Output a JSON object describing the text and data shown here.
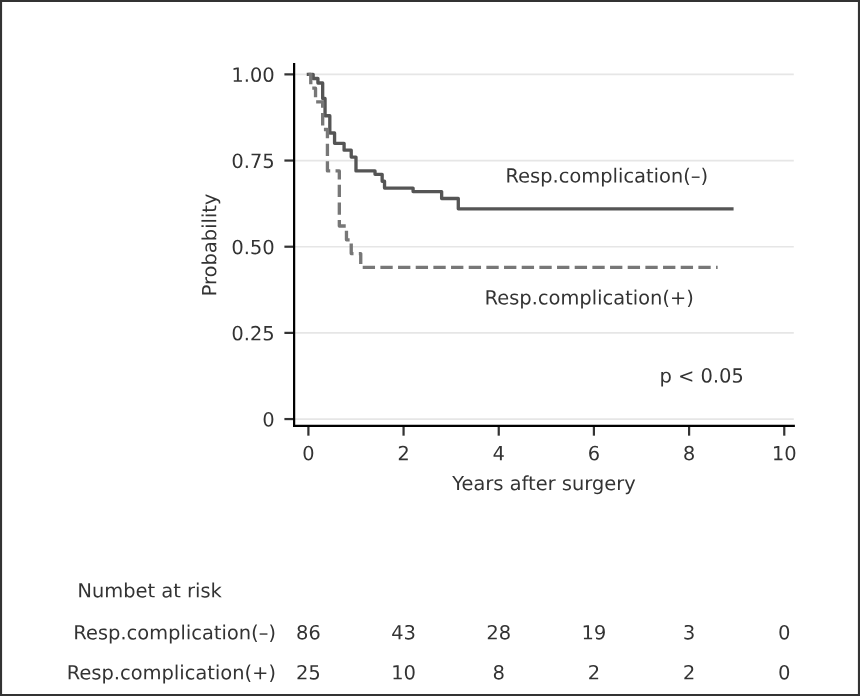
{
  "chart_data": {
    "type": "step",
    "xlabel": "Years after surgery",
    "ylabel": "Probability",
    "xlim": [
      -0.3,
      10.2
    ],
    "ylim": [
      -0.02,
      1.03
    ],
    "xticks": [
      0,
      2,
      4,
      6,
      8,
      10
    ],
    "yticks": [
      {
        "value": 0,
        "label": "0"
      },
      {
        "value": 0.25,
        "label": "0.25"
      },
      {
        "value": 0.5,
        "label": "0.50"
      },
      {
        "value": 0.75,
        "label": "0.75"
      },
      {
        "value": 1,
        "label": "1.00"
      }
    ],
    "grid": "y",
    "legend": false,
    "series": [
      {
        "name": "Resp.complication(–)",
        "color": "#555555",
        "line_style": "solid",
        "x": [
          0,
          0.1,
          0.2,
          0.3,
          0.35,
          0.45,
          0.55,
          0.75,
          0.9,
          1.0,
          1.4,
          1.55,
          1.6,
          2.2,
          2.8,
          3.15,
          8.9
        ],
        "values": [
          1.0,
          0.988,
          0.975,
          0.93,
          0.88,
          0.83,
          0.8,
          0.78,
          0.76,
          0.72,
          0.71,
          0.69,
          0.67,
          0.66,
          0.64,
          0.61,
          0.61
        ]
      },
      {
        "name": "Resp.complication(+)",
        "color": "#777777",
        "line_style": "dashed",
        "x": [
          0,
          0.05,
          0.15,
          0.3,
          0.4,
          0.65,
          0.8,
          0.9,
          1.1,
          8.6
        ],
        "values": [
          1.0,
          0.96,
          0.92,
          0.84,
          0.72,
          0.56,
          0.52,
          0.48,
          0.44,
          0.44
        ]
      }
    ],
    "annotations": [
      "p < 0.05",
      "Numbet at risk",
      "Resp.complication(–)",
      "86",
      "43",
      "28",
      "19",
      "3",
      "0",
      "Resp.complication(+)",
      "25",
      "10",
      "8",
      "2",
      "2",
      "0"
    ]
  }
}
